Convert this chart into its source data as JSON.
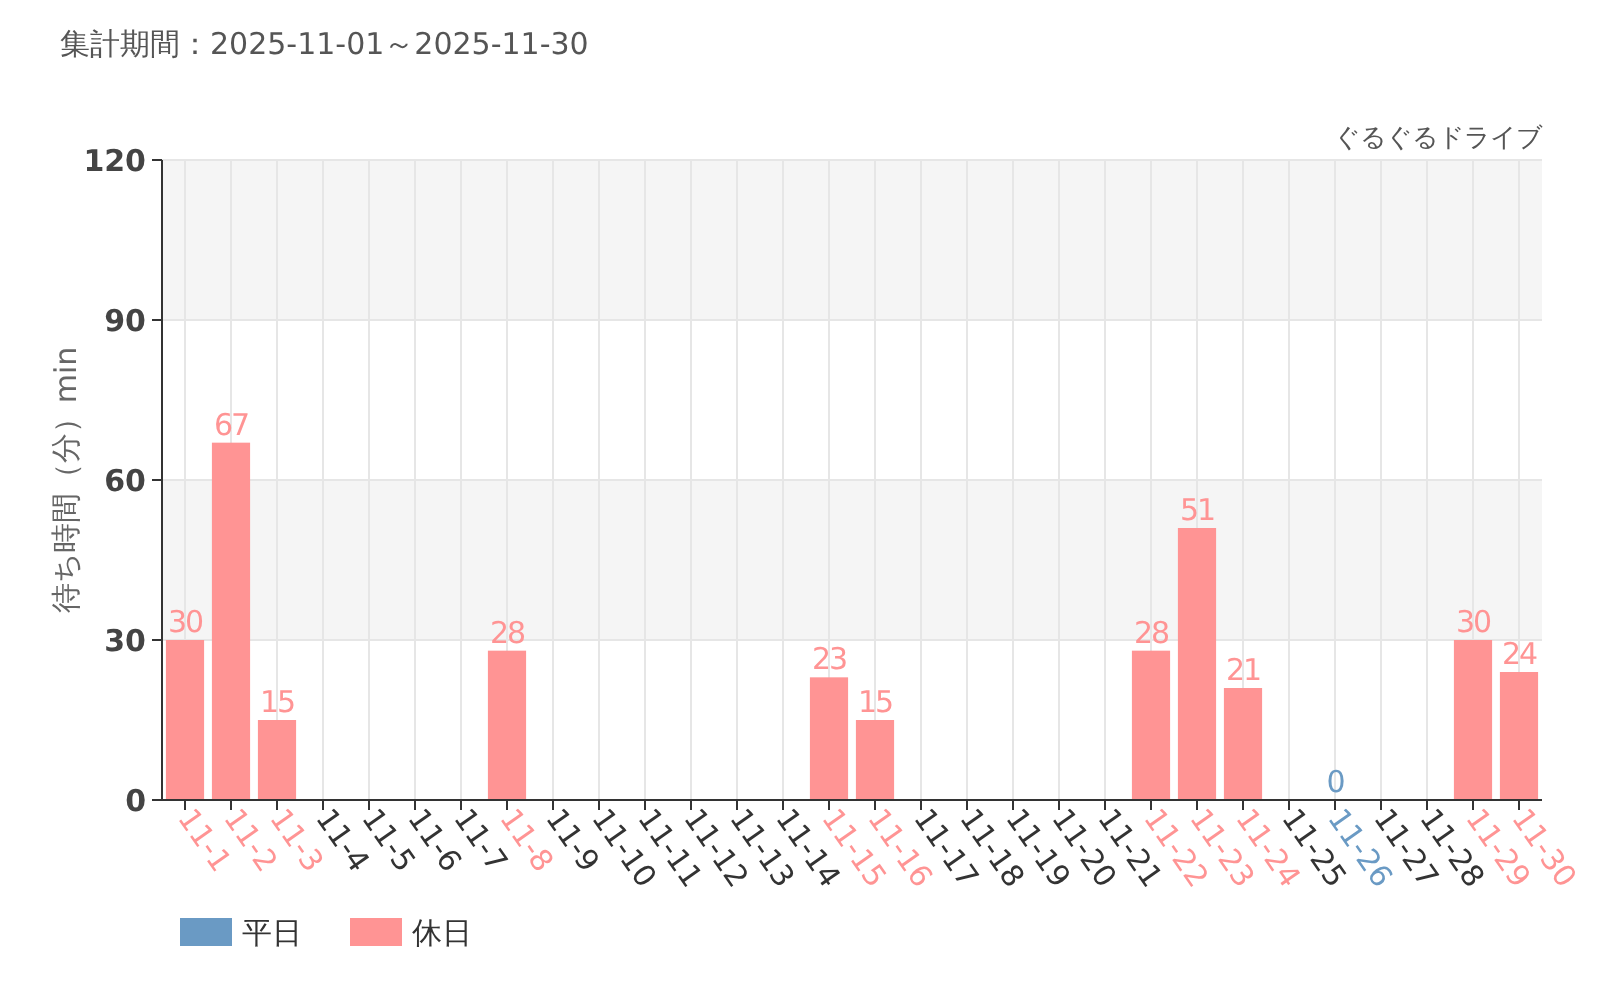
{
  "chart_data": {
    "type": "bar",
    "title": "集計期間：2025-11-01～2025-11-30",
    "subtitle": "ぐるぐるドライブ",
    "ylabel": "待ち時間（分）min",
    "categories": [
      "11-1",
      "11-2",
      "11-3",
      "11-4",
      "11-5",
      "11-6",
      "11-7",
      "11-8",
      "11-9",
      "11-10",
      "11-11",
      "11-12",
      "11-13",
      "11-14",
      "11-15",
      "11-16",
      "11-17",
      "11-18",
      "11-19",
      "11-20",
      "11-21",
      "11-22",
      "11-23",
      "11-24",
      "11-25",
      "11-26",
      "11-27",
      "11-28",
      "11-29",
      "11-30"
    ],
    "series": [
      {
        "name": "平日",
        "color": "#6a9ac4",
        "values": [
          null,
          null,
          null,
          null,
          null,
          null,
          null,
          null,
          null,
          null,
          null,
          null,
          null,
          null,
          null,
          null,
          null,
          null,
          null,
          null,
          null,
          null,
          null,
          null,
          null,
          0,
          null,
          null,
          null,
          null
        ]
      },
      {
        "name": "休日",
        "color": "#ff9494",
        "values": [
          30,
          67,
          15,
          null,
          null,
          null,
          null,
          28,
          null,
          null,
          null,
          null,
          null,
          null,
          23,
          15,
          null,
          null,
          null,
          null,
          null,
          28,
          51,
          21,
          null,
          null,
          null,
          null,
          30,
          24
        ]
      }
    ],
    "stacked": true,
    "ylim": [
      0,
      120
    ],
    "yticks": [
      0,
      30,
      60,
      90,
      120
    ],
    "grid": true,
    "legend": "bottom left",
    "data_labels": true
  }
}
